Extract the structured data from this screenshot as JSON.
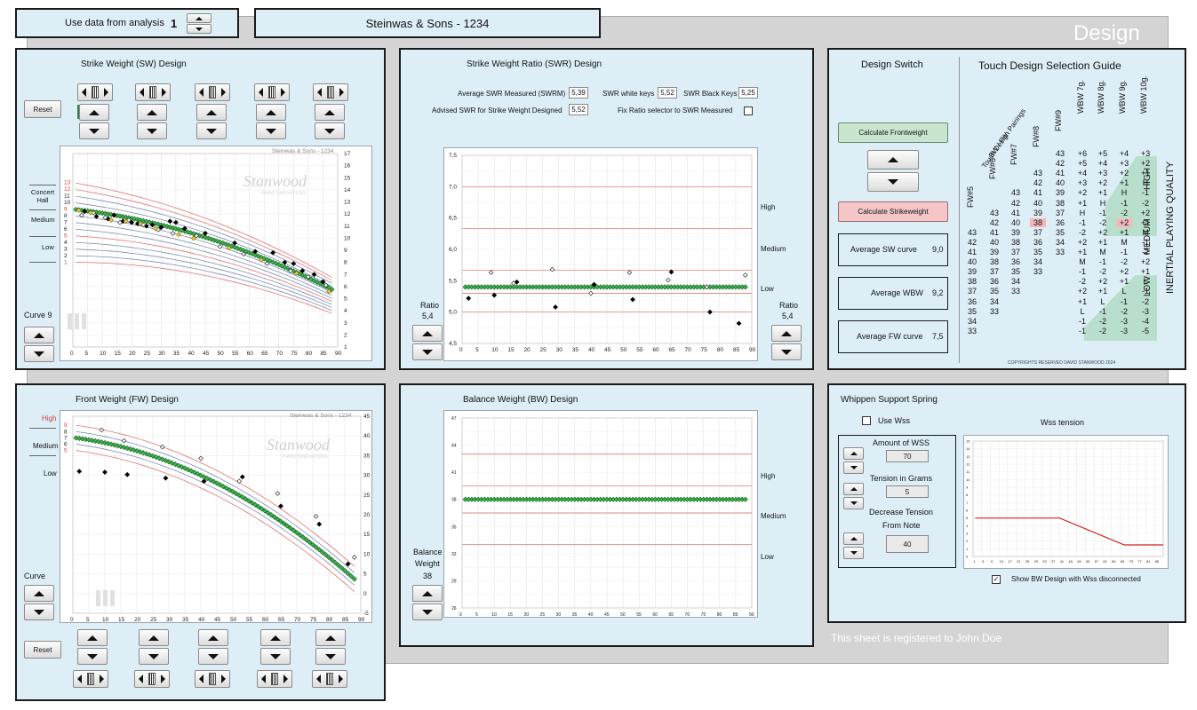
{
  "header": {
    "use_data_label": "Use data from analysis",
    "analysis_number": "1",
    "piano_name": "Steinwas & Sons - 1234",
    "design_label": "Design"
  },
  "sw_panel": {
    "title": "Strike Weight (SW) Design",
    "reset_label": "Reset",
    "curve_label": "Curve",
    "curve_value": "9",
    "chart_watermark": "Steinwas & Sons - 1234",
    "logo_text": "Stanwood",
    "logo_sub": "PIANO INNOVATIONS",
    "zone_labels": [
      "Concert Hall",
      "Medium",
      "Low"
    ],
    "curve_numbers": [
      "13",
      "12",
      "11",
      "10",
      "9",
      "8",
      "7",
      "6",
      "5",
      "4",
      "3",
      "2",
      "1"
    ]
  },
  "swr_panel": {
    "title": "Strike Weight Ratio (SWR) Design",
    "avg_swr_label": "Average SWR Measured (SWRM)",
    "avg_swr_value": "5,39",
    "swr_white_label": "SWR white keys",
    "swr_white_value": "5,52",
    "swr_black_label": "SWR Black Keys",
    "swr_black_value": "5,25",
    "advised_label": "Advised SWR for Strike Weight Designed",
    "advised_value": "5,52",
    "fix_ratio_label": "Fix Ratio selector to SWR Measured",
    "ratio_label": "Ratio",
    "ratio_value": "5,4",
    "zone_labels": [
      "High",
      "Medium",
      "Low"
    ]
  },
  "fw_panel": {
    "title": "Front Weight (FW) Design",
    "reset_label": "Reset",
    "curve_label": "Curve",
    "chart_watermark": "Steinwas & Sons - 1234",
    "zone_labels": [
      "High",
      "Medium",
      "Low"
    ],
    "curve_numbers": [
      "9",
      "8",
      "7",
      "6",
      "5"
    ]
  },
  "bw_panel": {
    "title": "Balance Weight (BW) Design",
    "bw_label_1": "Balance",
    "bw_label_2": "Weight",
    "bw_value": "38",
    "zone_labels": [
      "High",
      "Medium",
      "Low"
    ]
  },
  "design_switch": {
    "title": "Design Switch",
    "calc_front_label": "Calculate Frontweight",
    "calc_strike_label": "Calculate Strikeweight",
    "avg_sw_label": "Average SW curve",
    "avg_sw_value": "9,0",
    "avg_wbw_label": "Average WBW",
    "avg_wbw_value": "9,2",
    "avg_fw_label": "Average FW curve",
    "avg_fw_value": "7,5"
  },
  "guide": {
    "title": "Touch Design Selection Guide",
    "diag_1": "BW / FW",
    "diag_2": "Touch Design Pairings",
    "col_headers": [
      "FW#5",
      "FW#6",
      "FW#7",
      "FW#8",
      "FW#9",
      "WBW 7g.",
      "WBW 8g.",
      "WBW 9g.",
      "WBW 10g."
    ],
    "rows": [
      [
        "",
        "",
        "",
        "",
        "43",
        "+6",
        "+5",
        "+4",
        "+3"
      ],
      [
        "",
        "",
        "",
        "",
        "42",
        "+5",
        "+4",
        "+3",
        "+2"
      ],
      [
        "",
        "",
        "",
        "43",
        "41",
        "+4",
        "+3",
        "+2",
        "+1"
      ],
      [
        "",
        "",
        "",
        "42",
        "40",
        "+3",
        "+2",
        "+1",
        "H"
      ],
      [
        "",
        "",
        "43",
        "41",
        "39",
        "+2",
        "+1",
        "H",
        "-1"
      ],
      [
        "",
        "",
        "42",
        "40",
        "38",
        "+1",
        "H",
        "-1",
        "-2"
      ],
      [
        "",
        "43",
        "41",
        "39",
        "37",
        "H",
        "-1",
        "-2",
        "+2"
      ],
      [
        "",
        "42",
        "40",
        "38",
        "36",
        "-1",
        "-2",
        "+2",
        "+1"
      ],
      [
        "43",
        "41",
        "39",
        "37",
        "35",
        "-2",
        "+2",
        "+1",
        "M"
      ],
      [
        "42",
        "40",
        "38",
        "36",
        "34",
        "+2",
        "+1",
        "M",
        "-1"
      ],
      [
        "41",
        "39",
        "37",
        "35",
        "33",
        "+1",
        "M",
        "-1",
        "-2"
      ],
      [
        "40",
        "38",
        "36",
        "34",
        "",
        "M",
        "-1",
        "-2",
        "+2"
      ],
      [
        "39",
        "37",
        "35",
        "33",
        "",
        "-1",
        "-2",
        "+2",
        "+1"
      ],
      [
        "38",
        "36",
        "34",
        "",
        "",
        "-2",
        "+2",
        "+1",
        "L"
      ],
      [
        "37",
        "35",
        "33",
        "",
        "",
        "+2",
        "+1",
        "L",
        "-1"
      ],
      [
        "36",
        "34",
        "",
        "",
        "",
        "+1",
        "L",
        "-1",
        "-2"
      ],
      [
        "35",
        "33",
        "",
        "",
        "",
        "L",
        "-1",
        "-2",
        "-3"
      ],
      [
        "34",
        "",
        "",
        "",
        "",
        "-1",
        "-2",
        "-3",
        "-4"
      ],
      [
        "33",
        "",
        "",
        "",
        "",
        "-1",
        "-2",
        "-3",
        "-5"
      ]
    ],
    "side_high": "HIGH",
    "side_medium": "MEDIUM",
    "side_low": "LOW",
    "side_quality": "INERTIAL PLAYING QUALITY",
    "copyright": "COPYRIGHTS RESERVED DAVID STANWOOD 2024"
  },
  "wss": {
    "title": "Whippen Support Spring",
    "use_wss_label": "Use Wss",
    "amount_label": "Amount of WSS",
    "amount_value": "70",
    "tension_label": "Tension in Grams",
    "tension_value": "5",
    "decrease_label_1": "Decrease Tension",
    "decrease_label_2": "From Note",
    "decrease_value": "40",
    "chart_title": "Wss tension",
    "show_bw_label": "Show BW Design with Wss disconnected"
  },
  "footer": {
    "registered": "This sheet is registered to John Doe"
  },
  "colors": {
    "panel_bg": "#ddeef7",
    "green_marker": "#3cb44b",
    "red_line": "#e06060",
    "blue_line": "#6a7fa8",
    "backdrop": "#d4d4d4"
  },
  "chart_data": [
    {
      "type": "line",
      "id": "sw",
      "xlim": [
        0,
        90
      ],
      "ylim_right": [
        1,
        17
      ],
      "xticks": [
        0,
        5,
        10,
        15,
        20,
        25,
        30,
        35,
        40,
        45,
        50,
        55,
        60,
        65,
        70,
        75,
        80,
        85,
        90
      ],
      "yticks_right": [
        1,
        2,
        3,
        4,
        5,
        6,
        7,
        8,
        9,
        10,
        11,
        12,
        13,
        14,
        15,
        16,
        17
      ],
      "design_curve": {
        "x": [
          1,
          10,
          20,
          30,
          40,
          50,
          60,
          70,
          80,
          88
        ],
        "y": [
          12.4,
          11.9,
          11.3,
          10.6,
          9.9,
          9.1,
          8.3,
          7.4,
          6.5,
          5.6
        ]
      },
      "measured_black": {
        "x": [
          4,
          8,
          12,
          14,
          17,
          20,
          22,
          25,
          27,
          30,
          33,
          35,
          38,
          45,
          55,
          62,
          68,
          72,
          75,
          78,
          82,
          85
        ],
        "y": [
          12.2,
          11.8,
          11.6,
          11.9,
          11.4,
          11.3,
          11.2,
          11.0,
          11.1,
          10.9,
          11.4,
          11.3,
          10.8,
          10.4,
          9.6,
          8.9,
          8.8,
          8.0,
          7.9,
          7.3,
          7.0,
          6.4
        ]
      },
      "measured_white": {
        "x": [
          3,
          7,
          11,
          16,
          19,
          24,
          29,
          34,
          42,
          50,
          58,
          66,
          74,
          80,
          86
        ],
        "y": [
          11.9,
          12.1,
          11.7,
          11.3,
          11.5,
          11.1,
          10.7,
          10.4,
          10.2,
          9.3,
          8.7,
          7.9,
          7.3,
          6.8,
          6.1
        ]
      },
      "measured_yellow": {
        "x": [
          2,
          6,
          13,
          18,
          23,
          28,
          36,
          41,
          53,
          64,
          76,
          87
        ],
        "y": [
          12.3,
          12.1,
          11.5,
          11.4,
          11.2,
          10.8,
          10.3,
          10.0,
          9.2,
          8.2,
          7.1,
          5.6
        ]
      }
    },
    {
      "type": "scatter",
      "id": "swr",
      "xlim": [
        0,
        90
      ],
      "ylim": [
        4.5,
        7.5
      ],
      "xticks": [
        0,
        5,
        10,
        15,
        20,
        25,
        30,
        35,
        40,
        45,
        50,
        55,
        60,
        65,
        70,
        75,
        80,
        85,
        90
      ],
      "yticks": [
        4.5,
        5.0,
        5.5,
        6.0,
        6.5,
        7.0,
        7.5
      ],
      "ytick_labels": [
        "4,5",
        "5,0",
        "5,5",
        "6,0",
        "6,5",
        "7,0",
        "7,5"
      ],
      "zone_lines": [
        5.0,
        5.3,
        5.67,
        6.33,
        7.0
      ],
      "design_ratio": 5.4,
      "measured_black": {
        "x": [
          2,
          10,
          17,
          29,
          41,
          53,
          65,
          77,
          86
        ],
        "y": [
          5.22,
          5.27,
          5.48,
          5.08,
          5.44,
          5.2,
          5.64,
          5.0,
          4.82
        ]
      },
      "measured_white": {
        "x": [
          9,
          16,
          28,
          40,
          52,
          64,
          76,
          88
        ],
        "y": [
          5.63,
          5.46,
          5.68,
          5.3,
          5.63,
          5.51,
          5.4,
          5.59
        ]
      }
    },
    {
      "type": "line",
      "id": "fw",
      "xlim": [
        0,
        90
      ],
      "ylim_right": [
        -5,
        45
      ],
      "xticks": [
        0,
        5,
        10,
        15,
        20,
        25,
        30,
        35,
        40,
        45,
        50,
        55,
        60,
        65,
        70,
        75,
        80,
        85,
        90
      ],
      "yticks_right": [
        -5,
        0,
        5,
        10,
        15,
        20,
        25,
        30,
        35,
        40,
        45
      ],
      "design_curve": {
        "x": [
          1,
          10,
          20,
          30,
          40,
          50,
          60,
          70,
          80,
          88
        ],
        "y": [
          39.5,
          37.5,
          34.8,
          31.4,
          27.4,
          22.8,
          17.6,
          12.0,
          6.6,
          2.0
        ]
      },
      "measured_black": {
        "x": [
          2,
          10,
          17,
          29,
          41,
          53,
          65,
          77,
          86
        ],
        "y": [
          31,
          30.8,
          30.2,
          29.3,
          28.5,
          29.6,
          22.2,
          17.6,
          7.5
        ]
      },
      "measured_white": {
        "x": [
          9,
          16,
          28,
          40,
          52,
          64,
          76,
          88
        ],
        "y": [
          41.5,
          38.8,
          37.2,
          34.3,
          28.5,
          25.4,
          19.6,
          9.2
        ]
      }
    },
    {
      "type": "line",
      "id": "bw",
      "xlim": [
        0,
        90
      ],
      "ylim": [
        26,
        47
      ],
      "xticks": [
        0,
        5,
        10,
        15,
        20,
        25,
        30,
        35,
        40,
        45,
        50,
        55,
        60,
        65,
        70,
        75,
        80,
        85,
        90
      ],
      "yticks": [
        26,
        29,
        32,
        35,
        38,
        41,
        44,
        47
      ],
      "zone_lines": [
        33,
        36.5,
        39.5,
        43
      ],
      "design_value": 38
    },
    {
      "type": "line",
      "id": "wss",
      "title": "Wss tension",
      "xlim": [
        0,
        88
      ],
      "ylim": [
        0,
        15
      ],
      "xticks": [
        1,
        5,
        9,
        13,
        17,
        21,
        25,
        29,
        33,
        37,
        41,
        45,
        49,
        53,
        57,
        61,
        65,
        69,
        73,
        77,
        81,
        85
      ],
      "yticks": [
        0,
        1,
        2,
        3,
        4,
        5,
        6,
        7,
        8,
        9,
        10,
        11,
        12,
        13,
        14,
        15
      ],
      "x": [
        1,
        40,
        70,
        88
      ],
      "y": [
        5,
        5,
        1.5,
        1.5
      ]
    }
  ]
}
